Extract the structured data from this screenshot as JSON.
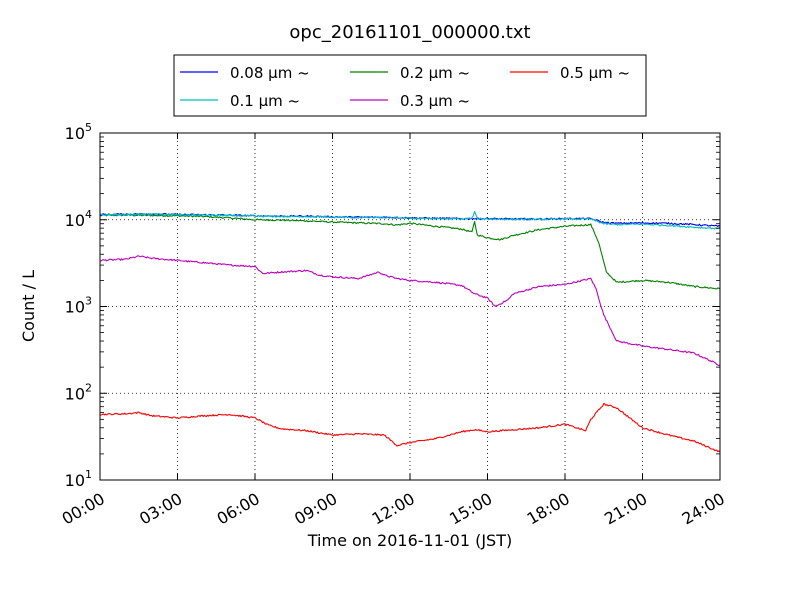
{
  "chart_data": {
    "type": "line",
    "title": "opc_20161101_000000.txt",
    "xlabel": "Time on 2016-11-01 (JST)",
    "ylabel": "Count / L",
    "x_unit": "hour of day",
    "xlim": [
      0,
      24
    ],
    "ylim": [
      10,
      100000
    ],
    "yscale": "log",
    "grid": true,
    "legend_position": "top-center",
    "x_ticks": [
      {
        "value": 0,
        "label": "00:00"
      },
      {
        "value": 3,
        "label": "03:00"
      },
      {
        "value": 6,
        "label": "06:00"
      },
      {
        "value": 9,
        "label": "09:00"
      },
      {
        "value": 12,
        "label": "12:00"
      },
      {
        "value": 15,
        "label": "15:00"
      },
      {
        "value": 18,
        "label": "18:00"
      },
      {
        "value": 21,
        "label": "21:00"
      },
      {
        "value": 24,
        "label": "24:00"
      }
    ],
    "y_ticks": [
      {
        "value": 10,
        "base": "10",
        "exp": "1"
      },
      {
        "value": 100,
        "base": "10",
        "exp": "2"
      },
      {
        "value": 1000,
        "base": "10",
        "exp": "3"
      },
      {
        "value": 10000,
        "base": "10",
        "exp": "4"
      },
      {
        "value": 100000,
        "base": "10",
        "exp": "5"
      }
    ],
    "series": [
      {
        "name": "0.08 μm ~",
        "color": "#0000ff",
        "x": [
          0,
          1,
          2,
          3,
          4,
          5,
          6,
          7,
          8,
          9,
          10,
          11,
          12,
          13,
          14,
          14.5,
          15,
          16,
          17,
          18,
          19,
          19.5,
          20,
          21,
          22,
          23,
          24
        ],
        "y": [
          11500,
          11600,
          11700,
          11500,
          11400,
          11300,
          11100,
          11000,
          11000,
          10800,
          10700,
          10700,
          10500,
          10400,
          10300,
          10300,
          10300,
          10200,
          10200,
          10300,
          10300,
          9300,
          9100,
          9200,
          9100,
          8800,
          8400
        ]
      },
      {
        "name": "0.1 μm ~",
        "color": "#00bfbf",
        "x": [
          0,
          1,
          2,
          3,
          4,
          5,
          6,
          7,
          8,
          9,
          10,
          11,
          12,
          13,
          14,
          14.4,
          14.5,
          14.6,
          15,
          16,
          17,
          18,
          19,
          19.5,
          20,
          21,
          22,
          23,
          24
        ],
        "y": [
          11400,
          11500,
          11600,
          11400,
          11300,
          11200,
          11000,
          10900,
          10900,
          10700,
          10600,
          10600,
          10400,
          10300,
          10200,
          10400,
          12300,
          10300,
          10200,
          10100,
          10100,
          10200,
          10200,
          9000,
          8800,
          8900,
          8600,
          8200,
          7900
        ]
      },
      {
        "name": "0.2 μm ~",
        "color": "#008000",
        "x": [
          0,
          1,
          2,
          3,
          4,
          5,
          6,
          7,
          8,
          9,
          10,
          11,
          11.5,
          12,
          13,
          14,
          14.4,
          14.5,
          14.6,
          15,
          15.5,
          16,
          17,
          18,
          19,
          19.3,
          19.6,
          20,
          21,
          22,
          23,
          24
        ],
        "y": [
          11200,
          11300,
          11200,
          11100,
          10900,
          10500,
          10000,
          9900,
          9700,
          9400,
          9200,
          9000,
          8700,
          9100,
          8400,
          7800,
          7200,
          9600,
          6700,
          6200,
          5900,
          6600,
          7700,
          8400,
          8800,
          5500,
          2500,
          1900,
          2000,
          1900,
          1700,
          1600
        ]
      },
      {
        "name": "0.3 μm ~",
        "color": "#bf00bf",
        "x": [
          0,
          1,
          1.5,
          2,
          3,
          4,
          5,
          6,
          6.3,
          7,
          8,
          8.5,
          9,
          10,
          10.8,
          11,
          11.5,
          12,
          13,
          14,
          14.5,
          15,
          15.3,
          15.8,
          16,
          17,
          18,
          19,
          19.2,
          19.5,
          20,
          21,
          22,
          23,
          24
        ],
        "y": [
          3400,
          3500,
          3800,
          3600,
          3400,
          3200,
          3000,
          2900,
          2400,
          2500,
          2600,
          2300,
          2200,
          2100,
          2500,
          2300,
          2100,
          2000,
          1900,
          1750,
          1400,
          1250,
          1000,
          1200,
          1400,
          1700,
          1800,
          2100,
          1600,
          800,
          400,
          350,
          320,
          290,
          210
        ]
      },
      {
        "name": "0.5 μm ~",
        "color": "#ff0000",
        "x": [
          0,
          1,
          1.5,
          2,
          3,
          4,
          5,
          6,
          6.5,
          7,
          8,
          9,
          10,
          11,
          11.5,
          12,
          13,
          14,
          14.5,
          15,
          16,
          17,
          18,
          18.8,
          19,
          19.5,
          20,
          20.5,
          21,
          22,
          23,
          24
        ],
        "y": [
          57,
          58,
          60,
          55,
          52,
          55,
          57,
          52,
          43,
          39,
          37,
          33,
          34,
          33,
          25,
          27,
          30,
          36,
          38,
          36,
          38,
          40,
          44,
          37,
          50,
          75,
          68,
          52,
          40,
          33,
          28,
          21
        ]
      }
    ]
  }
}
